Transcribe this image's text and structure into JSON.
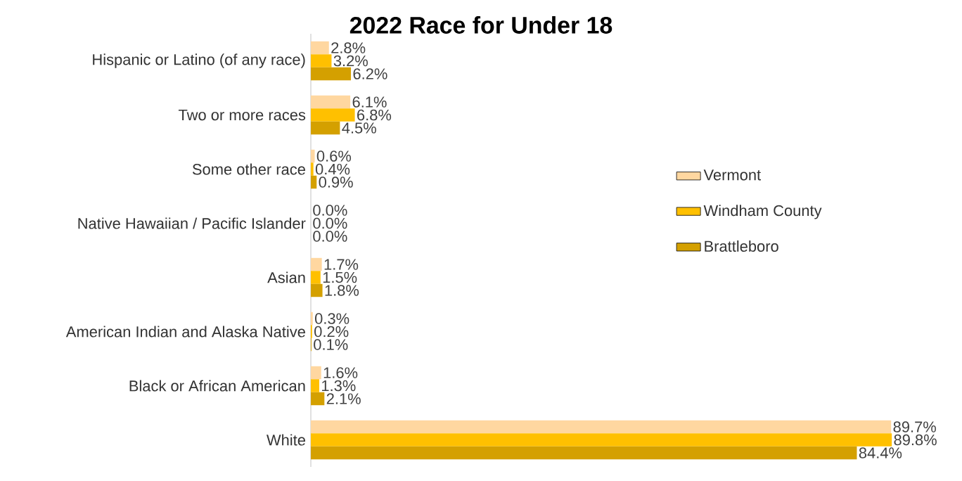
{
  "chart_data": {
    "type": "bar",
    "orientation": "horizontal",
    "title": "2022 Race for Under 18",
    "categories": [
      "Hispanic or Latino (of any race)",
      "Two or more races",
      "Some other race",
      "Native Hawaiian / Pacific Islander",
      "Asian",
      "American Indian and Alaska Native",
      "Black or African American",
      "White"
    ],
    "xlim": [
      0,
      90
    ],
    "legend": "right",
    "tick_labels": "y",
    "series": [
      {
        "name": "Vermont",
        "color": "#ffd7a0",
        "values": [
          2.8,
          6.1,
          0.6,
          0.0,
          1.7,
          0.3,
          1.6,
          89.7
        ],
        "value_labels": [
          "2.8%",
          "6.1%",
          "0.6%",
          "0.0%",
          "1.7%",
          "0.3%",
          "1.6%",
          "89.7%"
        ]
      },
      {
        "name": "Windham County",
        "color": "#ffc000",
        "values": [
          3.2,
          6.8,
          0.4,
          0.0,
          1.5,
          0.2,
          1.3,
          89.8
        ],
        "value_labels": [
          "3.2%",
          "6.8%",
          "0.4%",
          "0.0%",
          "1.5%",
          "0.2%",
          "1.3%",
          "89.8%"
        ]
      },
      {
        "name": "Brattleboro",
        "color": "#d4a000",
        "values": [
          6.2,
          4.5,
          0.9,
          0.0,
          1.8,
          0.1,
          2.1,
          84.4
        ],
        "value_labels": [
          "6.2%",
          "4.5%",
          "0.9%",
          "0.0%",
          "1.8%",
          "0.1%",
          "2.1%",
          "84.4%"
        ]
      }
    ]
  }
}
